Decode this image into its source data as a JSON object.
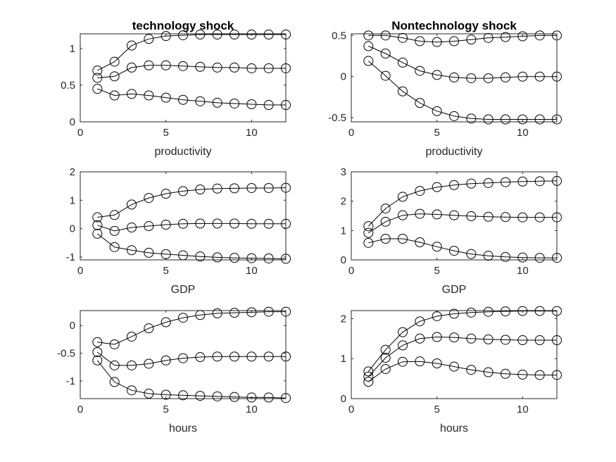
{
  "chart_data": [
    {
      "type": "line",
      "title": "technology shock",
      "xlabel": "productivity",
      "ylabel": "",
      "xlim": [
        0,
        12
      ],
      "ylim": [
        0,
        1.2
      ],
      "xticks": [
        "0",
        "5",
        "10"
      ],
      "yticks": [
        "0",
        "0.5",
        "1"
      ],
      "x": [
        1,
        2,
        3,
        4,
        5,
        6,
        7,
        8,
        9,
        10,
        11,
        12
      ],
      "marker": "circle",
      "series": [
        {
          "values": [
            0.7,
            0.82,
            1.04,
            1.13,
            1.17,
            1.18,
            1.19,
            1.19,
            1.19,
            1.19,
            1.19,
            1.19
          ]
        },
        {
          "values": [
            0.6,
            0.62,
            0.74,
            0.77,
            0.77,
            0.76,
            0.75,
            0.74,
            0.74,
            0.73,
            0.73,
            0.73
          ]
        },
        {
          "values": [
            0.45,
            0.36,
            0.38,
            0.36,
            0.33,
            0.3,
            0.28,
            0.26,
            0.25,
            0.24,
            0.23,
            0.23
          ]
        }
      ]
    },
    {
      "type": "line",
      "title": "Nontechnology shock",
      "xlabel": "productivity",
      "ylabel": "",
      "xlim": [
        0,
        12
      ],
      "ylim": [
        -0.55,
        0.52
      ],
      "xticks": [
        "0",
        "5",
        "10"
      ],
      "yticks": [
        "-0.5",
        "0",
        "0.5"
      ],
      "x": [
        1,
        2,
        3,
        4,
        5,
        6,
        7,
        8,
        9,
        10,
        11,
        12
      ],
      "marker": "circle",
      "series": [
        {
          "values": [
            0.5,
            0.5,
            0.47,
            0.43,
            0.42,
            0.43,
            0.45,
            0.47,
            0.48,
            0.49,
            0.5,
            0.5
          ]
        },
        {
          "values": [
            0.37,
            0.28,
            0.17,
            0.07,
            0.02,
            -0.01,
            -0.02,
            -0.02,
            -0.01,
            0.0,
            0.0,
            0.0
          ]
        },
        {
          "values": [
            0.19,
            0.01,
            -0.18,
            -0.32,
            -0.42,
            -0.48,
            -0.51,
            -0.52,
            -0.52,
            -0.52,
            -0.52,
            -0.52
          ]
        }
      ]
    },
    {
      "type": "line",
      "title": "",
      "xlabel": "GDP",
      "ylabel": "",
      "xlim": [
        0,
        12
      ],
      "ylim": [
        -1.1,
        2
      ],
      "xticks": [
        "0",
        "5",
        "10"
      ],
      "yticks": [
        "-1",
        "0",
        "1",
        "2"
      ],
      "x": [
        1,
        2,
        3,
        4,
        5,
        6,
        7,
        8,
        9,
        10,
        11,
        12
      ],
      "marker": "circle",
      "series": [
        {
          "values": [
            0.4,
            0.48,
            0.85,
            1.08,
            1.23,
            1.32,
            1.38,
            1.41,
            1.42,
            1.43,
            1.43,
            1.44
          ]
        },
        {
          "values": [
            0.12,
            -0.08,
            0.04,
            0.09,
            0.14,
            0.17,
            0.18,
            0.18,
            0.18,
            0.17,
            0.17,
            0.17
          ]
        },
        {
          "values": [
            -0.18,
            -0.65,
            -0.76,
            -0.85,
            -0.9,
            -0.94,
            -0.98,
            -1.01,
            -1.03,
            -1.04,
            -1.05,
            -1.06
          ]
        }
      ]
    },
    {
      "type": "line",
      "title": "",
      "xlabel": "GDP",
      "ylabel": "",
      "xlim": [
        0,
        12
      ],
      "ylim": [
        0,
        3
      ],
      "xticks": [
        "0",
        "5",
        "10"
      ],
      "yticks": [
        "0",
        "1",
        "2",
        "3"
      ],
      "x": [
        1,
        2,
        3,
        4,
        5,
        6,
        7,
        8,
        9,
        10,
        11,
        12
      ],
      "marker": "circle",
      "series": [
        {
          "values": [
            1.15,
            1.75,
            2.15,
            2.35,
            2.48,
            2.55,
            2.6,
            2.62,
            2.65,
            2.67,
            2.68,
            2.69
          ]
        },
        {
          "values": [
            0.92,
            1.3,
            1.52,
            1.57,
            1.55,
            1.52,
            1.49,
            1.47,
            1.46,
            1.45,
            1.45,
            1.45
          ]
        },
        {
          "values": [
            0.58,
            0.72,
            0.72,
            0.6,
            0.45,
            0.31,
            0.2,
            0.14,
            0.1,
            0.08,
            0.07,
            0.07
          ]
        }
      ]
    },
    {
      "type": "line",
      "title": "",
      "xlabel": "hours",
      "ylabel": "",
      "xlim": [
        0,
        12
      ],
      "ylim": [
        -1.32,
        0.27
      ],
      "xticks": [
        "0",
        "5",
        "10"
      ],
      "yticks": [
        "-1",
        "-0.5",
        "0"
      ],
      "x": [
        1,
        2,
        3,
        4,
        5,
        6,
        7,
        8,
        9,
        10,
        11,
        12
      ],
      "marker": "circle",
      "series": [
        {
          "values": [
            -0.3,
            -0.34,
            -0.2,
            -0.05,
            0.06,
            0.14,
            0.19,
            0.22,
            0.23,
            0.24,
            0.25,
            0.25
          ]
        },
        {
          "values": [
            -0.48,
            -0.72,
            -0.72,
            -0.69,
            -0.63,
            -0.59,
            -0.57,
            -0.56,
            -0.56,
            -0.56,
            -0.56,
            -0.56
          ]
        },
        {
          "values": [
            -0.63,
            -1.02,
            -1.17,
            -1.23,
            -1.25,
            -1.26,
            -1.27,
            -1.28,
            -1.29,
            -1.3,
            -1.3,
            -1.31
          ]
        }
      ]
    },
    {
      "type": "line",
      "title": "",
      "xlabel": "hours",
      "ylabel": "",
      "xlim": [
        0,
        12
      ],
      "ylim": [
        0,
        2.2
      ],
      "xticks": [
        "0",
        "5",
        "10"
      ],
      "yticks": [
        "0",
        "1",
        "2"
      ],
      "x": [
        1,
        2,
        3,
        4,
        5,
        6,
        7,
        8,
        9,
        10,
        11,
        12
      ],
      "marker": "circle",
      "series": [
        {
          "values": [
            0.68,
            1.22,
            1.66,
            1.93,
            2.06,
            2.12,
            2.15,
            2.17,
            2.18,
            2.19,
            2.19,
            2.19
          ]
        },
        {
          "values": [
            0.55,
            1.02,
            1.33,
            1.5,
            1.54,
            1.53,
            1.5,
            1.48,
            1.47,
            1.46,
            1.46,
            1.46
          ]
        },
        {
          "values": [
            0.42,
            0.74,
            0.92,
            0.93,
            0.88,
            0.8,
            0.72,
            0.66,
            0.62,
            0.6,
            0.59,
            0.59
          ]
        }
      ]
    }
  ]
}
